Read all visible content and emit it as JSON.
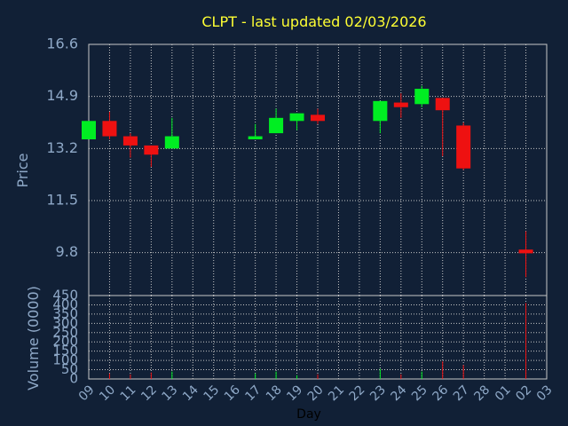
{
  "colors": {
    "background": "#112036",
    "plot_border": "#c8c8c8",
    "grid": "#c8c8c8",
    "up": "#00ee22",
    "down": "#ee1111",
    "title": "#ffff33",
    "axis_text": "#8fa9c8"
  },
  "chart_data": {
    "type": "candlestick",
    "title": "CLPT - last updated 02/03/2026",
    "xlabel": "Day",
    "price_panel": {
      "ylabel": "Price",
      "ylim": [
        8.4,
        16.6
      ],
      "yticks": [
        "16.6",
        "14.9",
        "13.2",
        "11.5",
        "9.8"
      ]
    },
    "volume_panel": {
      "ylabel": "Volume (0000)",
      "ylim": [
        0,
        450
      ],
      "yticks": [
        "450",
        "400",
        "350",
        "300",
        "250",
        "200",
        "150",
        "100",
        "50",
        "0"
      ]
    },
    "x_tick_labels": [
      "09",
      "10",
      "11",
      "12",
      "13",
      "14",
      "15",
      "16",
      "17",
      "18",
      "19",
      "20",
      "21",
      "22",
      "23",
      "24",
      "25",
      "26",
      "27",
      "28",
      "01",
      "02",
      "03"
    ],
    "candles": [
      {
        "day": "09",
        "open": 13.5,
        "close": 14.1,
        "high": 14.1,
        "low": 13.5,
        "volume": 0
      },
      {
        "day": "10",
        "open": 14.1,
        "close": 13.6,
        "high": 14.4,
        "low": 13.5,
        "volume": 30
      },
      {
        "day": "11",
        "open": 13.6,
        "close": 13.3,
        "high": 13.7,
        "low": 12.9,
        "volume": 25
      },
      {
        "day": "12",
        "open": 13.3,
        "close": 13.0,
        "high": 13.3,
        "low": 12.6,
        "volume": 35
      },
      {
        "day": "13",
        "open": 13.2,
        "close": 13.6,
        "high": 14.2,
        "low": 13.2,
        "volume": 40
      },
      {
        "day": "17",
        "open": 13.5,
        "close": 13.6,
        "high": 14.0,
        "low": 13.5,
        "volume": 30
      },
      {
        "day": "18",
        "open": 13.7,
        "close": 14.2,
        "high": 14.5,
        "low": 13.7,
        "volume": 40
      },
      {
        "day": "19",
        "open": 14.1,
        "close": 14.35,
        "high": 14.35,
        "low": 13.8,
        "volume": 20
      },
      {
        "day": "20",
        "open": 14.3,
        "close": 14.1,
        "high": 14.5,
        "low": 14.0,
        "volume": 25
      },
      {
        "day": "23",
        "open": 14.1,
        "close": 14.75,
        "high": 14.75,
        "low": 13.7,
        "volume": 55
      },
      {
        "day": "24",
        "open": 14.7,
        "close": 14.55,
        "high": 15.0,
        "low": 14.2,
        "volume": 25
      },
      {
        "day": "25",
        "open": 14.65,
        "close": 15.15,
        "high": 15.25,
        "low": 14.55,
        "volume": 40
      },
      {
        "day": "26",
        "open": 14.85,
        "close": 14.45,
        "high": 14.85,
        "low": 12.95,
        "volume": 95
      },
      {
        "day": "27",
        "open": 13.95,
        "close": 12.55,
        "high": 14.05,
        "low": 12.5,
        "volume": 75
      },
      {
        "day": "02",
        "open": 9.9,
        "close": 9.78,
        "high": 10.5,
        "low": 9.0,
        "volume": 410
      }
    ]
  }
}
